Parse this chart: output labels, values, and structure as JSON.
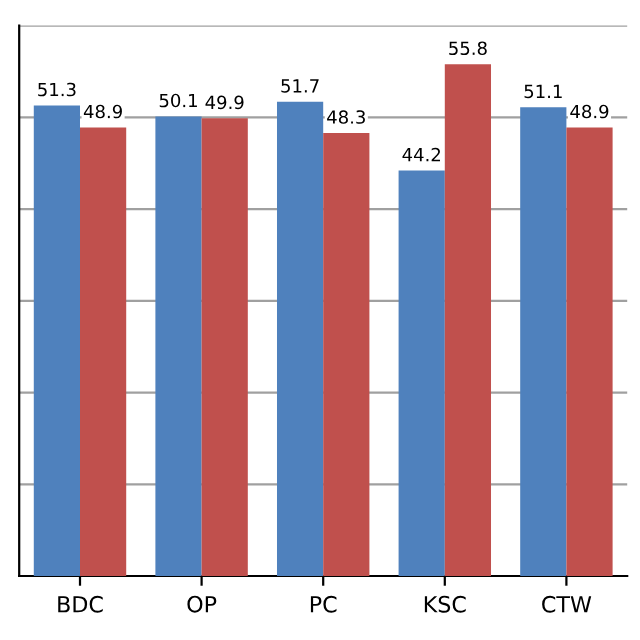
{
  "chart_data": {
    "type": "bar",
    "categories": [
      "BDC",
      "OP",
      "PC",
      "KSC",
      "CTW"
    ],
    "series": [
      {
        "color": "#4f81bd",
        "values": [
          51.3,
          50.1,
          51.7,
          44.2,
          51.1
        ]
      },
      {
        "color": "#c0504d",
        "values": [
          48.9,
          49.9,
          48.3,
          55.8,
          48.9
        ]
      }
    ],
    "data_labels": true,
    "ylim": [
      0,
      60
    ],
    "yticks": [
      {
        "value": 0,
        "label": null
      },
      {
        "value": 10,
        "label": null
      },
      {
        "value": 20,
        "label": null
      },
      {
        "value": 30,
        "label": null
      },
      {
        "value": 40,
        "label": null
      },
      {
        "value": 50,
        "label": null
      },
      {
        "value": 60,
        "label": null
      }
    ],
    "tick_labels": "x",
    "grid": "y",
    "legend": false
  }
}
